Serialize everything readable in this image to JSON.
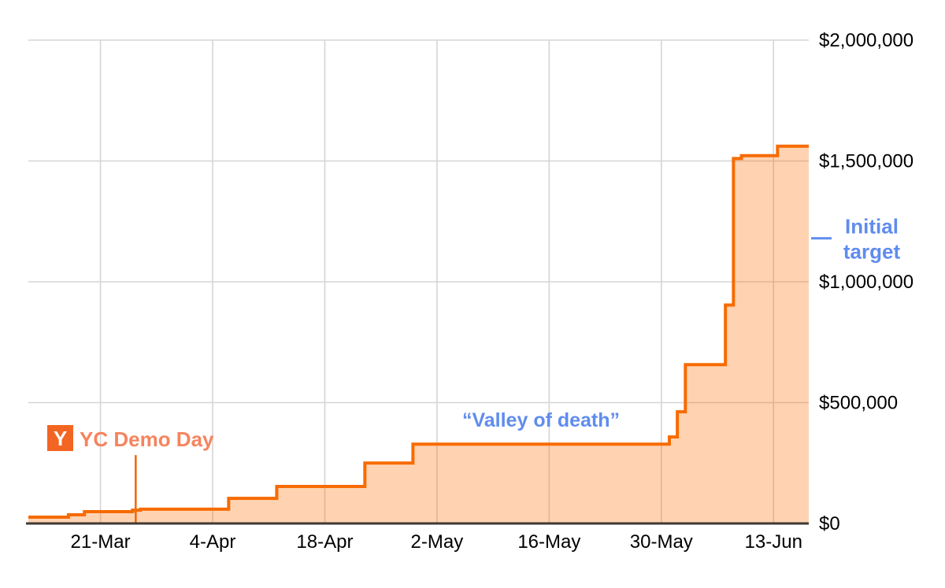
{
  "chart_data": {
    "type": "area",
    "subtype": "step-area-cumulative-fundraising",
    "title": "",
    "xlabel": "",
    "ylabel": "",
    "grid": true,
    "legend_position": "none",
    "y_axis": {
      "side": "right",
      "min": 0,
      "max": 2000000,
      "ticks": [
        {
          "label": "$0",
          "value": 0
        },
        {
          "label": "$500,000",
          "value": 500000
        },
        {
          "label": "$1,000,000",
          "value": 1000000
        },
        {
          "label": "$1,500,000",
          "value": 1500000
        },
        {
          "label": "$2,000,000",
          "value": 2000000
        }
      ]
    },
    "x_axis": {
      "start_date": "12-Mar",
      "end_date": "17-Jun",
      "span_days": 97.4,
      "ticks": [
        {
          "label": "21-Mar",
          "day": 9
        },
        {
          "label": "4-Apr",
          "day": 23
        },
        {
          "label": "18-Apr",
          "day": 37
        },
        {
          "label": "2-May",
          "day": 51
        },
        {
          "label": "16-May",
          "day": 65
        },
        {
          "label": "30-May",
          "day": 79
        },
        {
          "label": "13-Jun",
          "day": 93
        }
      ]
    },
    "series": {
      "points": [
        {
          "date": "12-Mar",
          "day": 0,
          "value": 26000
        },
        {
          "date": "17-Mar",
          "day": 5,
          "value": 36000
        },
        {
          "date": "19-Mar",
          "day": 7,
          "value": 49000
        },
        {
          "date": "25-Mar",
          "day": 13,
          "value": 55000
        },
        {
          "date": "26-Mar",
          "day": 14,
          "value": 59000
        },
        {
          "date": "6-Apr",
          "day": 25,
          "value": 104000
        },
        {
          "date": "12-Apr",
          "day": 31,
          "value": 153000
        },
        {
          "date": "23-Apr",
          "day": 42,
          "value": 250000
        },
        {
          "date": "29-Apr",
          "day": 48,
          "value": 328000
        },
        {
          "date": "31-May",
          "day": 80,
          "value": 358000
        },
        {
          "date": "1-Jun",
          "day": 81,
          "value": 462000
        },
        {
          "date": "2-Jun",
          "day": 82,
          "value": 657000
        },
        {
          "date": "7-Jun",
          "day": 87,
          "value": 904000
        },
        {
          "date": "8-Jun",
          "day": 88,
          "value": 1510000
        },
        {
          "date": "9-Jun",
          "day": 89,
          "value": 1522000
        },
        {
          "date": "13-Jun",
          "day": 93.5,
          "value": 1561000
        }
      ]
    },
    "annotations": {
      "yc_demo_day": {
        "label": "YC Demo Day",
        "logo_letter": "Y",
        "date": "25-Mar",
        "day": 13.4,
        "marker_top_value": 283000
      },
      "valley_of_death": {
        "label": "“Valley of death”"
      },
      "initial_target": {
        "label_line1": "Initial",
        "label_line2": "target",
        "value": 1180000
      }
    },
    "colors": {
      "line": "#f76b01",
      "fill": "rgba(255,109,1,0.30)",
      "marker_line": "#f0650a",
      "blue_accent": "#5f8cee",
      "yc_logo_bg": "#f26522",
      "yc_logo_letter": "#ffffff",
      "yc_label_text": "#f5845e",
      "grid": "#d5d5d5",
      "axis_line": "#3f3a33",
      "tick_label": "#000000"
    }
  }
}
